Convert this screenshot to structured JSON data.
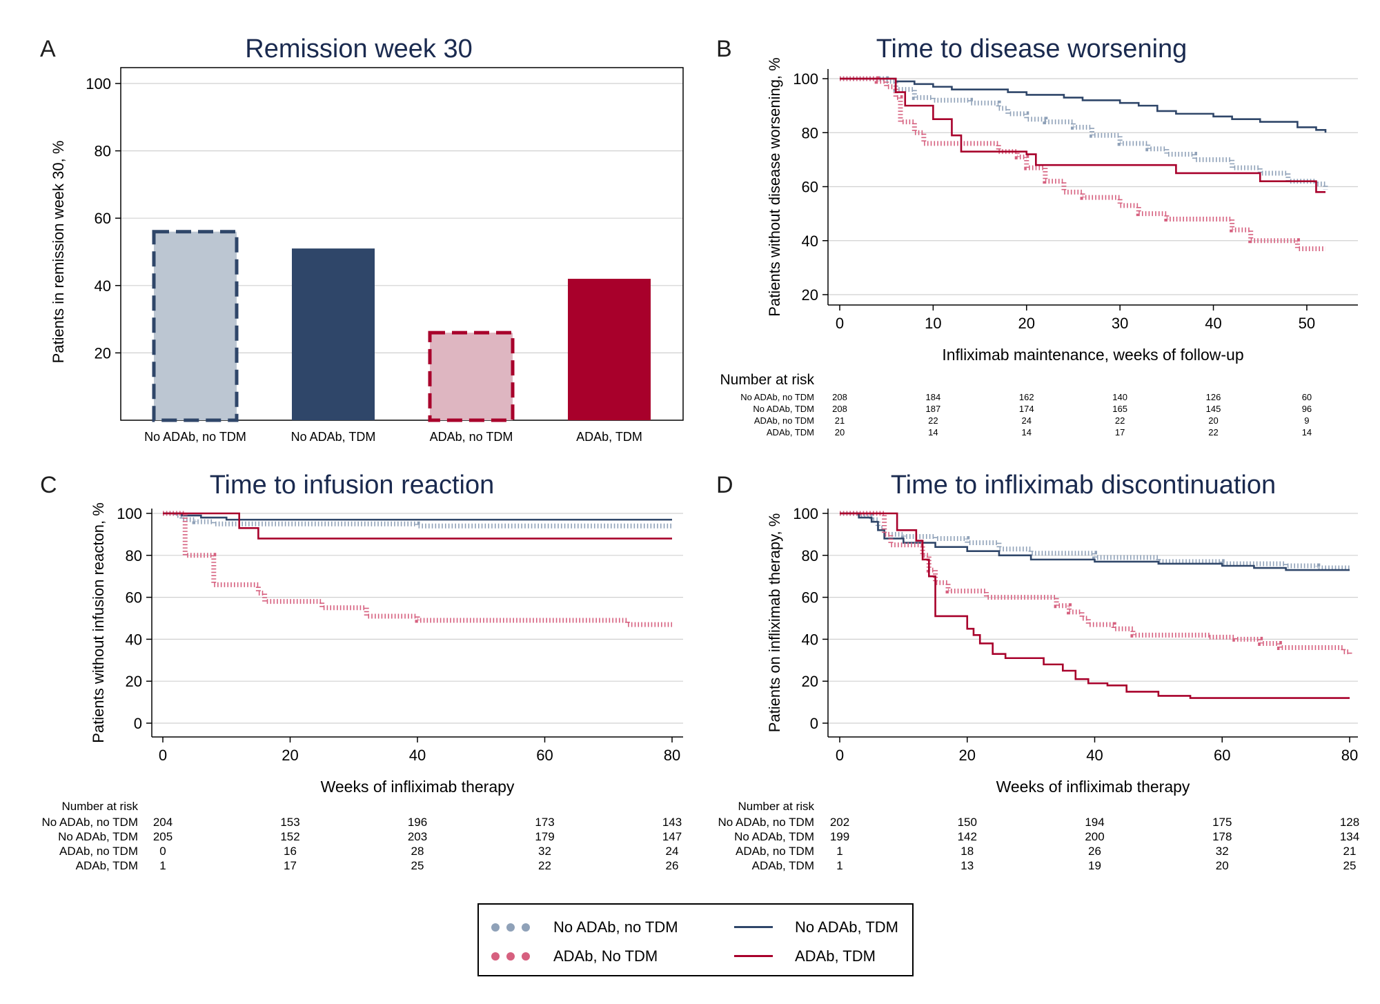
{
  "colors": {
    "navy": "#2f4669",
    "navy_light": "#8fa1b8",
    "crimson": "#a8002b",
    "crimson_light": "#d6607f",
    "bar_light_blue": "#bcc6d2",
    "bar_light_pink": "#deb6c1",
    "grid": "#d0d0d0"
  },
  "panels": {
    "A": {
      "letter": "A",
      "title": "Remission week 30"
    },
    "B": {
      "letter": "B",
      "title": "Time to disease worsening"
    },
    "C": {
      "letter": "C",
      "title": "Time to infusion reaction"
    },
    "D": {
      "letter": "D",
      "title": "Time to infliximab discontinuation"
    }
  },
  "legend": {
    "items": [
      {
        "label": "No ADAb, no TDM",
        "style": "dotted-navy"
      },
      {
        "label": "No ADAb, TDM",
        "style": "solid-navy"
      },
      {
        "label": "ADAb, No TDM",
        "style": "dotted-crimson"
      },
      {
        "label": "ADAb, TDM",
        "style": "solid-crimson"
      }
    ]
  },
  "chart_data": [
    {
      "panel": "A",
      "type": "bar",
      "title": "Remission week 30",
      "ylabel": "Patients in remission week 30, %",
      "xlabel": "",
      "categories": [
        "No ADAb, no TDM",
        "No ADAb, TDM",
        "ADAb, no TDM",
        "ADAb, TDM"
      ],
      "values": [
        56,
        51,
        26,
        42
      ],
      "ylim": [
        0,
        100
      ],
      "yticks": [
        "20",
        "40",
        "60",
        "80",
        "100"
      ],
      "grid": true
    },
    {
      "panel": "B",
      "type": "line",
      "title": "Time to disease worsening",
      "ylabel": "Patients without disease worsening, %",
      "xlabel": "Infliximab maintenance, weeks of follow-up",
      "xlim": [
        0,
        52
      ],
      "ylim": [
        20,
        100
      ],
      "xticks": [
        "0",
        "10",
        "20",
        "30",
        "40",
        "50"
      ],
      "yticks": [
        "20",
        "40",
        "60",
        "80",
        "100"
      ],
      "grid": true,
      "series": [
        {
          "style": "dotted-navy",
          "points": [
            [
              0,
              100
            ],
            [
              5,
              99
            ],
            [
              6,
              96
            ],
            [
              8,
              93
            ],
            [
              10,
              92
            ],
            [
              14,
              91
            ],
            [
              17,
              89
            ],
            [
              18,
              87
            ],
            [
              20,
              85
            ],
            [
              22,
              84
            ],
            [
              25,
              82
            ],
            [
              27,
              79
            ],
            [
              30,
              76
            ],
            [
              33,
              74
            ],
            [
              35,
              72
            ],
            [
              38,
              70
            ],
            [
              42,
              67
            ],
            [
              45,
              65
            ],
            [
              48,
              62
            ],
            [
              51,
              61
            ],
            [
              52,
              59
            ]
          ]
        },
        {
          "style": "solid-navy",
          "points": [
            [
              0,
              100
            ],
            [
              6,
              99
            ],
            [
              8,
              98
            ],
            [
              10,
              97
            ],
            [
              12,
              96
            ],
            [
              18,
              95
            ],
            [
              20,
              94
            ],
            [
              24,
              93
            ],
            [
              26,
              92
            ],
            [
              30,
              91
            ],
            [
              32,
              90
            ],
            [
              34,
              88
            ],
            [
              36,
              87
            ],
            [
              40,
              86
            ],
            [
              42,
              85
            ],
            [
              45,
              84
            ],
            [
              49,
              82
            ],
            [
              51,
              81
            ],
            [
              52,
              80
            ]
          ]
        },
        {
          "style": "dotted-crimson",
          "points": [
            [
              0,
              100
            ],
            [
              4,
              99
            ],
            [
              5,
              97
            ],
            [
              6,
              93
            ],
            [
              6.5,
              84
            ],
            [
              8,
              80
            ],
            [
              9,
              76
            ],
            [
              16,
              76
            ],
            [
              17,
              73
            ],
            [
              19,
              71
            ],
            [
              20,
              67
            ],
            [
              22,
              62
            ],
            [
              24,
              58
            ],
            [
              26,
              56
            ],
            [
              30,
              53
            ],
            [
              32,
              50
            ],
            [
              35,
              48
            ],
            [
              40,
              48
            ],
            [
              42,
              44
            ],
            [
              44,
              40
            ],
            [
              48,
              40
            ],
            [
              49,
              37
            ],
            [
              52,
              37
            ]
          ]
        },
        {
          "style": "solid-crimson",
          "points": [
            [
              0,
              100
            ],
            [
              5,
              100
            ],
            [
              6,
              95
            ],
            [
              7,
              90
            ],
            [
              10,
              85
            ],
            [
              12,
              79
            ],
            [
              13,
              73
            ],
            [
              18,
              73
            ],
            [
              20,
              72
            ],
            [
              21,
              68
            ],
            [
              35,
              68
            ],
            [
              36,
              65
            ],
            [
              44,
              65
            ],
            [
              45,
              62
            ],
            [
              50,
              62
            ],
            [
              51,
              58
            ],
            [
              52,
              58
            ]
          ]
        }
      ],
      "risk_table": {
        "title": "Number at risk",
        "xvalues": [
          0,
          10,
          20,
          30,
          40,
          50
        ],
        "rows": [
          {
            "label": "No ADAb, no TDM",
            "values": [
              "208",
              "184",
              "162",
              "140",
              "126",
              "60"
            ]
          },
          {
            "label": "No ADAb, TDM",
            "values": [
              "208",
              "187",
              "174",
              "165",
              "145",
              "96"
            ]
          },
          {
            "label": "ADAb, no TDM",
            "values": [
              "21",
              "22",
              "24",
              "22",
              "20",
              "9"
            ]
          },
          {
            "label": "ADAb, TDM",
            "values": [
              "20",
              "14",
              "14",
              "17",
              "22",
              "14"
            ]
          }
        ]
      }
    },
    {
      "panel": "C",
      "type": "line",
      "title": "Time to infusion reaction",
      "ylabel": "Patients without infusion reacton, %",
      "xlabel": "Weeks of infliximab therapy",
      "xlim": [
        0,
        80
      ],
      "ylim": [
        0,
        100
      ],
      "xticks": [
        "0",
        "20",
        "40",
        "60",
        "80"
      ],
      "yticks": [
        "0",
        "20",
        "40",
        "60",
        "80",
        "100"
      ],
      "grid": true,
      "series": [
        {
          "style": "dotted-navy",
          "points": [
            [
              0,
              100
            ],
            [
              2,
              99
            ],
            [
              3,
              97
            ],
            [
              5,
              96
            ],
            [
              8,
              95
            ],
            [
              20,
              95
            ],
            [
              40,
              94
            ],
            [
              80,
              94
            ]
          ]
        },
        {
          "style": "solid-navy",
          "points": [
            [
              0,
              100
            ],
            [
              3,
              99
            ],
            [
              6,
              98
            ],
            [
              10,
              97
            ],
            [
              80,
              97
            ]
          ]
        },
        {
          "style": "dotted-crimson",
          "points": [
            [
              0,
              100
            ],
            [
              3,
              100
            ],
            [
              3.5,
              80
            ],
            [
              7,
              80
            ],
            [
              8,
              66
            ],
            [
              14,
              66
            ],
            [
              15,
              62
            ],
            [
              16,
              58
            ],
            [
              24,
              58
            ],
            [
              25,
              55
            ],
            [
              31,
              55
            ],
            [
              32,
              51
            ],
            [
              40,
              49
            ],
            [
              72,
              49
            ],
            [
              73,
              47
            ],
            [
              80,
              47
            ]
          ]
        },
        {
          "style": "solid-crimson",
          "points": [
            [
              0,
              100
            ],
            [
              12,
              100
            ],
            [
              12,
              93
            ],
            [
              15,
              93
            ],
            [
              15,
              88
            ],
            [
              80,
              88
            ]
          ]
        }
      ],
      "risk_table": {
        "title": "Number at risk",
        "xvalues": [
          0,
          20,
          40,
          60,
          80
        ],
        "rows": [
          {
            "label": "No ADAb, no TDM",
            "values": [
              "204",
              "153",
              "196",
              "173",
              "143"
            ]
          },
          {
            "label": "No ADAb, TDM",
            "values": [
              "205",
              "152",
              "203",
              "179",
              "147"
            ]
          },
          {
            "label": "ADAb, no TDM",
            "values": [
              "0",
              "16",
              "28",
              "32",
              "24"
            ]
          },
          {
            "label": "ADAb, TDM",
            "values": [
              "1",
              "17",
              "25",
              "22",
              "26"
            ]
          }
        ]
      }
    },
    {
      "panel": "D",
      "type": "line",
      "title": "Time to infliximab discontinuation",
      "ylabel": "Patients on infliximab therapy, %",
      "xlabel": "Weeks of infliximab therapy",
      "xlim": [
        0,
        80
      ],
      "ylim": [
        0,
        100
      ],
      "xticks": [
        "0",
        "20",
        "40",
        "60",
        "80"
      ],
      "yticks": [
        "0",
        "20",
        "40",
        "60",
        "80",
        "100"
      ],
      "grid": true,
      "series": [
        {
          "style": "dotted-navy",
          "points": [
            [
              0,
              100
            ],
            [
              3,
              99
            ],
            [
              5,
              97
            ],
            [
              6,
              93
            ],
            [
              7,
              90
            ],
            [
              10,
              89
            ],
            [
              15,
              88
            ],
            [
              20,
              86
            ],
            [
              25,
              83
            ],
            [
              30,
              81
            ],
            [
              40,
              79
            ],
            [
              50,
              77
            ],
            [
              60,
              76
            ],
            [
              70,
              75
            ],
            [
              75,
              74
            ],
            [
              80,
              74
            ]
          ]
        },
        {
          "style": "solid-navy",
          "points": [
            [
              0,
              100
            ],
            [
              3,
              98
            ],
            [
              5,
              96
            ],
            [
              6,
              92
            ],
            [
              7,
              88
            ],
            [
              10,
              86
            ],
            [
              15,
              84
            ],
            [
              20,
              82
            ],
            [
              25,
              80
            ],
            [
              30,
              78
            ],
            [
              40,
              77
            ],
            [
              50,
              76
            ],
            [
              60,
              75
            ],
            [
              65,
              74
            ],
            [
              70,
              73
            ],
            [
              80,
              73
            ]
          ]
        },
        {
          "style": "dotted-crimson",
          "points": [
            [
              0,
              100
            ],
            [
              5,
              100
            ],
            [
              7,
              90
            ],
            [
              8,
              85
            ],
            [
              11,
              85
            ],
            [
              13,
              80
            ],
            [
              14,
              73
            ],
            [
              15,
              67
            ],
            [
              17,
              63
            ],
            [
              22,
              63
            ],
            [
              23,
              60
            ],
            [
              32,
              60
            ],
            [
              34,
              56
            ],
            [
              36,
              53
            ],
            [
              38,
              50
            ],
            [
              39,
              47
            ],
            [
              42,
              47
            ],
            [
              43,
              45
            ],
            [
              46,
              42
            ],
            [
              52,
              42
            ],
            [
              58,
              41
            ],
            [
              62,
              40
            ],
            [
              66,
              38
            ],
            [
              69,
              36
            ],
            [
              76,
              36
            ],
            [
              79,
              34
            ],
            [
              80,
              33
            ]
          ]
        },
        {
          "style": "solid-crimson",
          "points": [
            [
              0,
              100
            ],
            [
              8,
              100
            ],
            [
              9,
              92
            ],
            [
              12,
              87
            ],
            [
              13,
              78
            ],
            [
              14,
              70
            ],
            [
              15,
              51
            ],
            [
              19,
              51
            ],
            [
              20,
              45
            ],
            [
              21,
              42
            ],
            [
              22,
              38
            ],
            [
              24,
              33
            ],
            [
              26,
              31
            ],
            [
              30,
              31
            ],
            [
              32,
              28
            ],
            [
              35,
              25
            ],
            [
              37,
              21
            ],
            [
              39,
              19
            ],
            [
              42,
              18
            ],
            [
              45,
              15
            ],
            [
              50,
              13
            ],
            [
              55,
              12
            ],
            [
              65,
              12
            ],
            [
              80,
              12
            ]
          ]
        }
      ],
      "risk_table": {
        "title": "Number at risk",
        "xvalues": [
          0,
          20,
          40,
          60,
          80
        ],
        "rows": [
          {
            "label": "No ADAb, no TDM",
            "values": [
              "202",
              "150",
              "194",
              "175",
              "128"
            ]
          },
          {
            "label": "No ADAb, TDM",
            "values": [
              "199",
              "142",
              "200",
              "178",
              "134"
            ]
          },
          {
            "label": "ADAb, no TDM",
            "values": [
              "1",
              "18",
              "26",
              "32",
              "21"
            ]
          },
          {
            "label": "ADAb, TDM",
            "values": [
              "1",
              "13",
              "19",
              "20",
              "25"
            ]
          }
        ]
      }
    }
  ]
}
